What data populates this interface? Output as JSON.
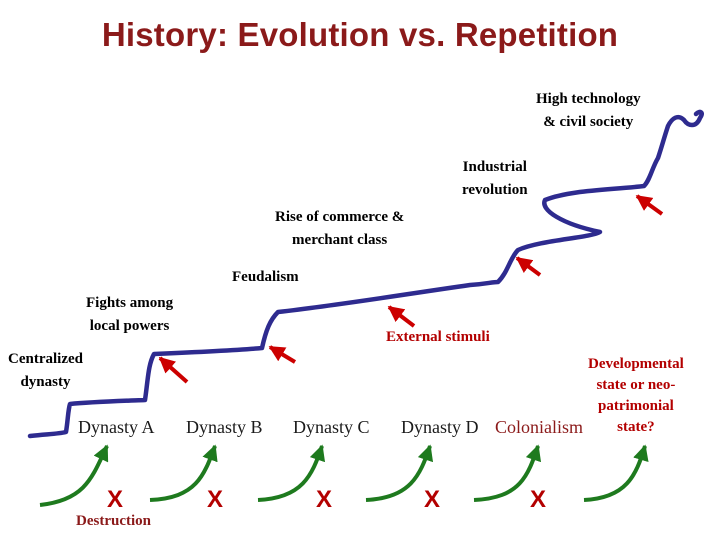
{
  "title": "History: Evolution vs. Repetition",
  "stages": {
    "high_tech": [
      "High technology",
      "& civil society"
    ],
    "industrial": [
      "Industrial",
      "revolution"
    ],
    "commerce": [
      "Rise of commerce &",
      "merchant class"
    ],
    "feudalism": "Feudalism",
    "fights": [
      "Fights among",
      "local powers"
    ],
    "centralized": [
      "Centralized",
      "dynasty"
    ],
    "external_stimuli": "External stimuli",
    "developmental": [
      "Developmental",
      "state or neo-",
      "patrimonial",
      "state?"
    ]
  },
  "dynasties": [
    "Dynasty A",
    "Dynasty B",
    "Dynasty C",
    "Dynasty D"
  ],
  "colonialism": "Colonialism",
  "x_mark": "X",
  "destruction": "Destruction",
  "colors": {
    "title": "#8b1a1a",
    "staircase": "#2e2b8f",
    "arrows_red": "#cc0000",
    "cycle_arrows": "#1e7a1e"
  }
}
